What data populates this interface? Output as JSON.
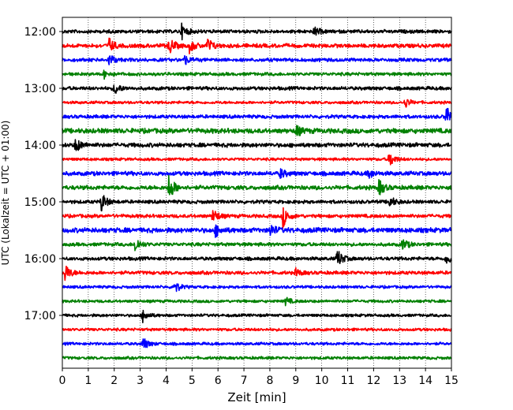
{
  "chart_data": {
    "type": "line",
    "title": "",
    "xlabel": "Zeit  [min]",
    "ylabel": "UTC (Lokalzeit = UTC + 01:00)",
    "xlim": [
      0,
      15
    ],
    "x_ticks": [
      0,
      1,
      2,
      3,
      4,
      5,
      6,
      7,
      8,
      9,
      10,
      11,
      12,
      13,
      14,
      15
    ],
    "y_tick_labels": [
      "12:00",
      "13:00",
      "14:00",
      "15:00",
      "16:00",
      "17:00"
    ],
    "trace_interval_min": 15,
    "grid": "vertical-dotted",
    "series_colors": [
      "#000000",
      "#ff0000",
      "#0000ff",
      "#008000"
    ],
    "traces": [
      {
        "start": "12:00",
        "color": "#000000",
        "amp": 2.5,
        "events": [
          {
            "t": 4.6,
            "a": 9
          },
          {
            "t": 9.7,
            "a": 6
          }
        ]
      },
      {
        "start": "12:15",
        "color": "#ff0000",
        "amp": 2.8,
        "events": [
          {
            "t": 1.8,
            "a": 9
          },
          {
            "t": 4.1,
            "a": 11
          },
          {
            "t": 4.9,
            "a": 8
          },
          {
            "t": 5.6,
            "a": 9
          }
        ]
      },
      {
        "start": "12:30",
        "color": "#0000ff",
        "amp": 2.5,
        "events": [
          {
            "t": 1.8,
            "a": 8
          },
          {
            "t": 4.7,
            "a": 6
          }
        ]
      },
      {
        "start": "12:45",
        "color": "#008000",
        "amp": 2.3,
        "events": [
          {
            "t": 1.6,
            "a": 5
          }
        ]
      },
      {
        "start": "13:00",
        "color": "#000000",
        "amp": 2.5,
        "events": [
          {
            "t": 2.0,
            "a": 8
          }
        ]
      },
      {
        "start": "13:15",
        "color": "#ff0000",
        "amp": 2.0,
        "events": [
          {
            "t": 13.2,
            "a": 7
          }
        ]
      },
      {
        "start": "13:30",
        "color": "#0000ff",
        "amp": 2.5,
        "events": [
          {
            "t": 14.8,
            "a": 14
          }
        ]
      },
      {
        "start": "13:45",
        "color": "#008000",
        "amp": 3.5,
        "events": [
          {
            "t": 9.0,
            "a": 7
          }
        ]
      },
      {
        "start": "14:00",
        "color": "#000000",
        "amp": 3.0,
        "events": [
          {
            "t": 0.5,
            "a": 10
          }
        ]
      },
      {
        "start": "14:15",
        "color": "#ff0000",
        "amp": 2.0,
        "events": [
          {
            "t": 12.6,
            "a": 11
          }
        ]
      },
      {
        "start": "14:30",
        "color": "#0000ff",
        "amp": 3.0,
        "events": [
          {
            "t": 8.4,
            "a": 6
          },
          {
            "t": 11.8,
            "a": 6
          }
        ]
      },
      {
        "start": "14:45",
        "color": "#008000",
        "amp": 3.0,
        "events": [
          {
            "t": 4.1,
            "a": 18
          },
          {
            "t": 12.2,
            "a": 10
          }
        ]
      },
      {
        "start": "15:00",
        "color": "#000000",
        "amp": 2.5,
        "events": [
          {
            "t": 1.5,
            "a": 12
          },
          {
            "t": 12.6,
            "a": 8
          }
        ]
      },
      {
        "start": "15:15",
        "color": "#ff0000",
        "amp": 2.5,
        "events": [
          {
            "t": 5.8,
            "a": 10
          },
          {
            "t": 8.5,
            "a": 14
          }
        ]
      },
      {
        "start": "15:30",
        "color": "#0000ff",
        "amp": 3.5,
        "events": [
          {
            "t": 5.9,
            "a": 7
          },
          {
            "t": 8.0,
            "a": 8
          }
        ]
      },
      {
        "start": "15:45",
        "color": "#008000",
        "amp": 2.5,
        "events": [
          {
            "t": 2.8,
            "a": 10
          },
          {
            "t": 13.1,
            "a": 8
          }
        ]
      },
      {
        "start": "16:00",
        "color": "#000000",
        "amp": 2.5,
        "events": [
          {
            "t": 10.6,
            "a": 12
          },
          {
            "t": 14.8,
            "a": 8
          }
        ]
      },
      {
        "start": "16:15",
        "color": "#ff0000",
        "amp": 2.5,
        "events": [
          {
            "t": 0.1,
            "a": 12
          },
          {
            "t": 9.0,
            "a": 5
          }
        ]
      },
      {
        "start": "16:30",
        "color": "#0000ff",
        "amp": 2.0,
        "events": [
          {
            "t": 4.3,
            "a": 9
          }
        ]
      },
      {
        "start": "16:45",
        "color": "#008000",
        "amp": 2.0,
        "events": [
          {
            "t": 8.6,
            "a": 5
          }
        ]
      },
      {
        "start": "17:00",
        "color": "#000000",
        "amp": 2.0,
        "events": [
          {
            "t": 3.1,
            "a": 8
          }
        ]
      },
      {
        "start": "17:15",
        "color": "#ff0000",
        "amp": 2.0,
        "events": []
      },
      {
        "start": "17:30",
        "color": "#0000ff",
        "amp": 2.0,
        "events": [
          {
            "t": 3.1,
            "a": 9
          }
        ]
      },
      {
        "start": "17:45",
        "color": "#008000",
        "amp": 2.0,
        "events": []
      }
    ]
  }
}
